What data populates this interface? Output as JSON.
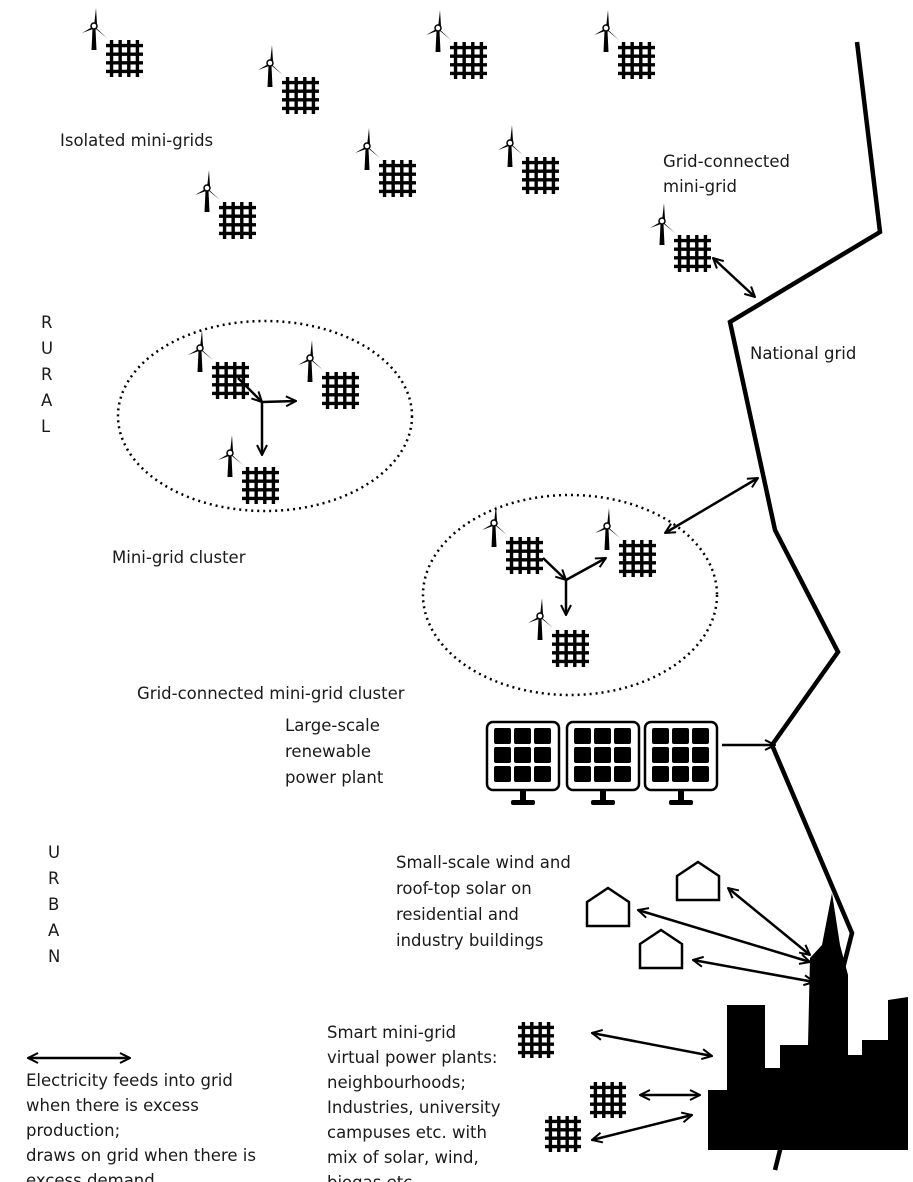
{
  "labels": {
    "isolated": "Isolated mini-grids",
    "grid_connected": [
      "Grid-connected",
      "mini-grid"
    ],
    "national_grid": "National grid",
    "rural": "RURAL",
    "cluster": "Mini-grid cluster",
    "connected_cluster": "Grid-connected mini-grid cluster",
    "large_scale": [
      "Large-scale",
      "renewable",
      "power plant"
    ],
    "urban": "URBAN",
    "small_scale": [
      "Small-scale wind and",
      "roof-top solar on",
      "residential and",
      "industry buildings"
    ],
    "smart": [
      "Smart mini-grid",
      "virtual power plants:",
      "neighbourhoods;",
      "Industries, university",
      "campuses etc. with",
      "mix of solar, wind,",
      "biogas etc."
    ]
  },
  "legend": {
    "text": [
      "Electricity feeds into grid",
      "when there is excess",
      "production;",
      "draws on grid when there is",
      "excess demand"
    ]
  }
}
